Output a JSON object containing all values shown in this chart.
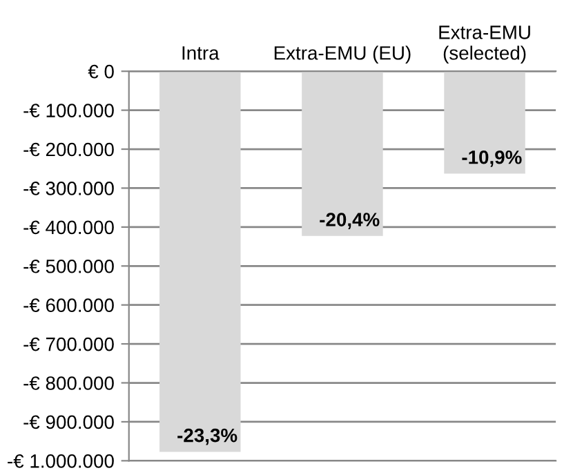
{
  "chart_data": {
    "type": "bar",
    "categories": [
      "Intra",
      "Extra-EMU (EU)",
      "Extra-EMU\n(selected)"
    ],
    "values": [
      -977000,
      -423000,
      -263000
    ],
    "annotations": [
      {
        "text": "-23,3%",
        "x": "Intra",
        "y": -977000
      },
      {
        "text": "-20,4%",
        "x": "Extra-EMU (EU)",
        "y": -423000
      },
      {
        "text": "-10,9%",
        "x": "Extra-EMU\n(selected)",
        "y": -263000
      }
    ],
    "color": "#d9d9d9",
    "ylim": [
      -1000000,
      0
    ],
    "yticks": [
      {
        "value": 0,
        "label": "€ 0"
      },
      {
        "value": -100000,
        "label": "-€ 100.000"
      },
      {
        "value": -200000,
        "label": "-€ 200.000"
      },
      {
        "value": -300000,
        "label": "-€ 300.000"
      },
      {
        "value": -400000,
        "label": "-€ 400.000"
      },
      {
        "value": -500000,
        "label": "-€ 500.000"
      },
      {
        "value": -600000,
        "label": "-€ 600.000"
      },
      {
        "value": -700000,
        "label": "-€ 700.000"
      },
      {
        "value": -800000,
        "label": "-€ 800.000"
      },
      {
        "value": -900000,
        "label": "-€ 900.000"
      },
      {
        "value": -1000000,
        "label": "-€ 1.000.000"
      }
    ],
    "grid": "y",
    "legend": false
  }
}
